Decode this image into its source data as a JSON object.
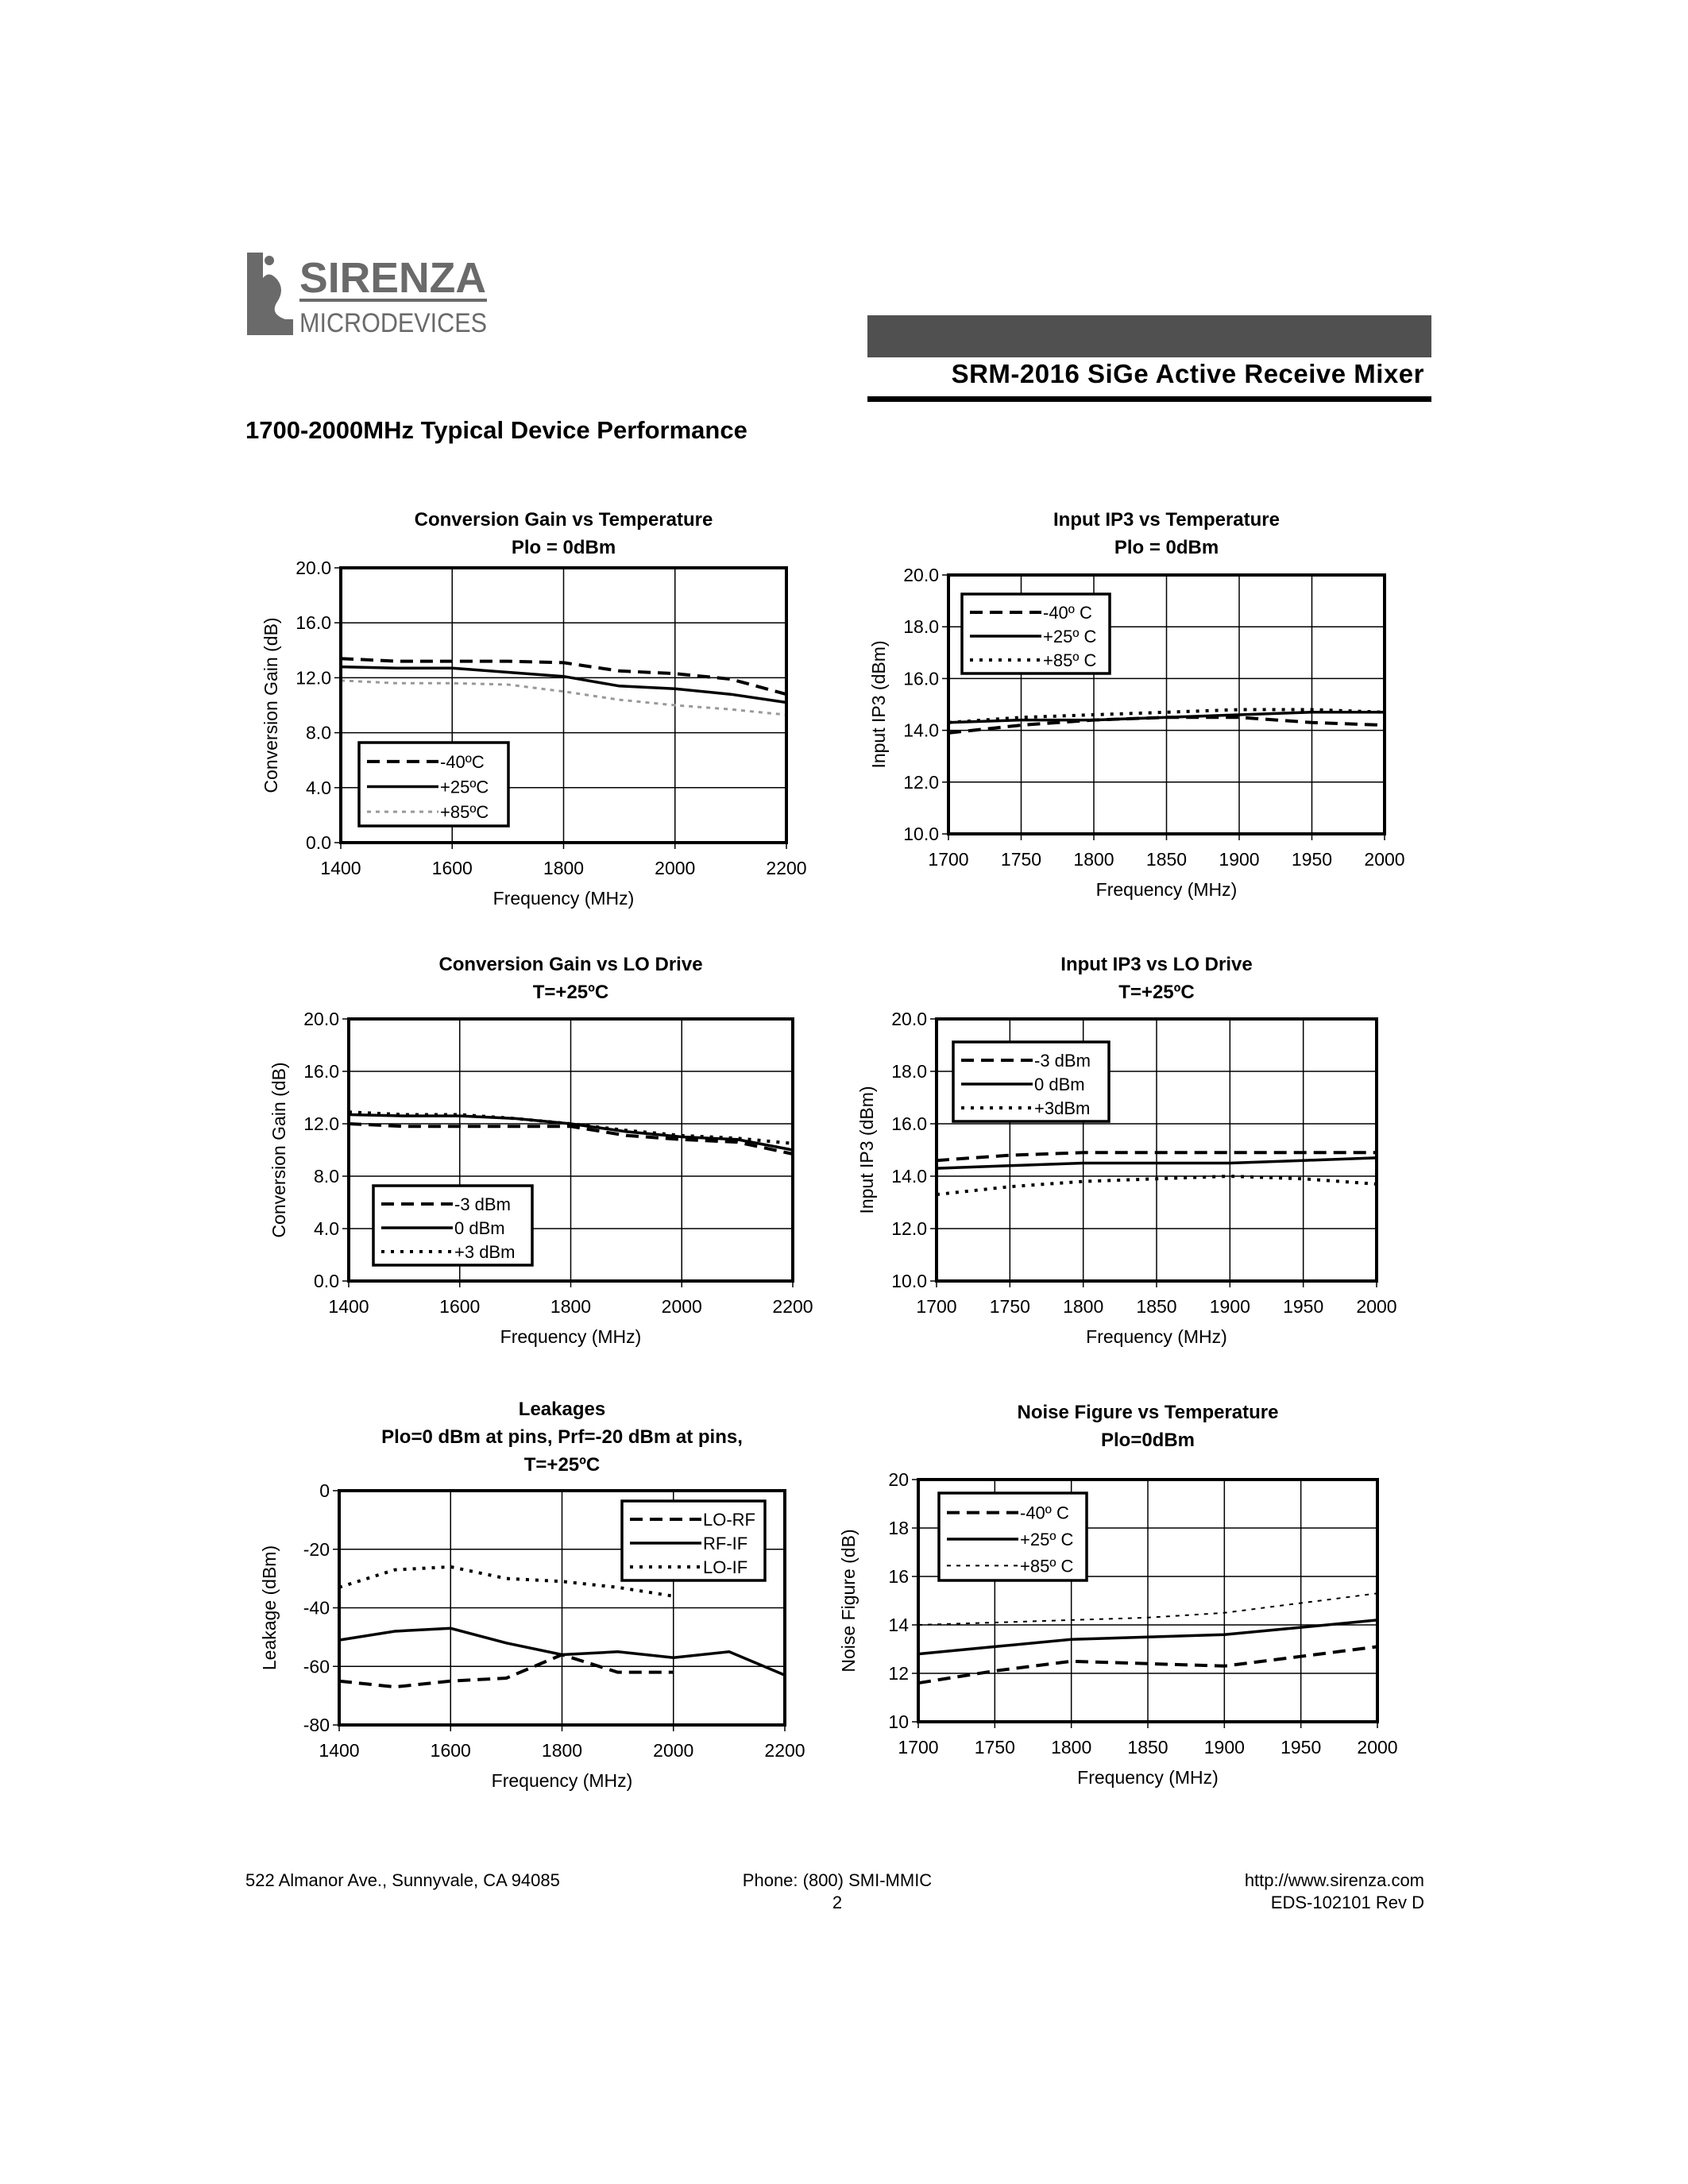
{
  "header": {
    "logo_text": "SIRENZA MICRODEVICES",
    "doc_title": "SRM-2016 SiGe Active Receive Mixer",
    "section_title": "1700-2000MHz Typical Device Performance"
  },
  "footer": {
    "address": "522 Almanor Ave., Sunnyvale, CA 94085",
    "phone": "Phone: (800) SMI-MMIC",
    "page": "2",
    "url": "http://www.sirenza.com",
    "revision": "EDS-102101 Rev D"
  },
  "chart_data": [
    {
      "type": "line",
      "title": [
        "Conversion Gain vs Temperature",
        "Plo = 0dBm"
      ],
      "xlabel": "Frequency (MHz)",
      "ylabel": "Conversion Gain (dB)",
      "xlim": [
        1400,
        2200
      ],
      "ylim": [
        0,
        20
      ],
      "xticks": [
        "1400",
        "1600",
        "1800",
        "2000",
        "2200"
      ],
      "yticks": [
        "0.0",
        "4.0",
        "8.0",
        "12.0",
        "16.0",
        "20.0"
      ],
      "grid": true,
      "legend_position": "bottom-left",
      "x": [
        1400,
        1500,
        1600,
        1700,
        1800,
        1900,
        2000,
        2100,
        2200
      ],
      "series": [
        {
          "name": "-40ºC",
          "style": "dashed",
          "values": [
            13.4,
            13.2,
            13.2,
            13.2,
            13.1,
            12.5,
            12.3,
            11.9,
            10.8
          ]
        },
        {
          "name": "+25ºC",
          "style": "solid",
          "values": [
            12.8,
            12.7,
            12.7,
            12.4,
            12.1,
            11.4,
            11.2,
            10.8,
            10.2
          ]
        },
        {
          "name": "+85ºC",
          "style": "gray-dotted",
          "values": [
            11.8,
            11.6,
            11.6,
            11.5,
            11.0,
            10.4,
            10.0,
            9.7,
            9.3
          ]
        }
      ]
    },
    {
      "type": "line",
      "title": [
        "Input IP3 vs Temperature",
        "Plo = 0dBm"
      ],
      "xlabel": "Frequency (MHz)",
      "ylabel": "Input IP3 (dBm)",
      "xlim": [
        1700,
        2000
      ],
      "ylim": [
        10,
        20
      ],
      "xticks": [
        "1700",
        "1750",
        "1800",
        "1850",
        "1900",
        "1950",
        "2000"
      ],
      "yticks": [
        "10.0",
        "12.0",
        "14.0",
        "16.0",
        "18.0",
        "20.0"
      ],
      "grid": true,
      "legend_position": "top-left",
      "x": [
        1700,
        1750,
        1800,
        1850,
        1900,
        1950,
        2000
      ],
      "series": [
        {
          "name": "-40º C",
          "style": "dashed",
          "values": [
            13.9,
            14.2,
            14.4,
            14.5,
            14.5,
            14.3,
            14.2
          ]
        },
        {
          "name": "+25º C",
          "style": "solid",
          "values": [
            14.3,
            14.4,
            14.4,
            14.5,
            14.6,
            14.7,
            14.7
          ]
        },
        {
          "name": "+85º C",
          "style": "dotted",
          "values": [
            14.3,
            14.5,
            14.6,
            14.7,
            14.8,
            14.8,
            14.7
          ]
        }
      ]
    },
    {
      "type": "line",
      "title": [
        "Conversion Gain vs LO Drive",
        "T=+25ºC"
      ],
      "xlabel": "Frequency (MHz)",
      "ylabel": "Conversion Gain (dB)",
      "xlim": [
        1400,
        2200
      ],
      "ylim": [
        0,
        20
      ],
      "xticks": [
        "1400",
        "1600",
        "1800",
        "2000",
        "2200"
      ],
      "yticks": [
        "0.0",
        "4.0",
        "8.0",
        "12.0",
        "16.0",
        "20.0"
      ],
      "grid": true,
      "legend_position": "bottom-left",
      "x": [
        1400,
        1500,
        1600,
        1700,
        1800,
        1900,
        2000,
        2100,
        2200
      ],
      "series": [
        {
          "name": "-3 dBm",
          "style": "dashed",
          "values": [
            12.0,
            11.8,
            11.8,
            11.8,
            11.8,
            11.1,
            10.8,
            10.6,
            9.7
          ]
        },
        {
          "name": "0 dBm",
          "style": "solid",
          "values": [
            12.7,
            12.6,
            12.6,
            12.4,
            12.0,
            11.4,
            11.0,
            10.8,
            10.0
          ]
        },
        {
          "name": "+3 dBm",
          "style": "dotted",
          "values": [
            12.9,
            12.7,
            12.7,
            12.4,
            12.0,
            11.5,
            11.1,
            10.9,
            10.5
          ]
        }
      ]
    },
    {
      "type": "line",
      "title": [
        "Input IP3 vs LO Drive",
        "T=+25ºC"
      ],
      "xlabel": "Frequency (MHz)",
      "ylabel": "Input IP3 (dBm)",
      "xlim": [
        1700,
        2000
      ],
      "ylim": [
        10,
        20
      ],
      "xticks": [
        "1700",
        "1750",
        "1800",
        "1850",
        "1900",
        "1950",
        "2000"
      ],
      "yticks": [
        "10.0",
        "12.0",
        "14.0",
        "16.0",
        "18.0",
        "20.0"
      ],
      "grid": true,
      "legend_position": "top-left",
      "x": [
        1700,
        1750,
        1800,
        1850,
        1900,
        1950,
        2000
      ],
      "series": [
        {
          "name": "-3 dBm",
          "style": "dashed",
          "values": [
            14.6,
            14.8,
            14.9,
            14.9,
            14.9,
            14.9,
            14.9
          ]
        },
        {
          "name": "0 dBm",
          "style": "solid",
          "values": [
            14.3,
            14.4,
            14.5,
            14.5,
            14.5,
            14.6,
            14.7
          ]
        },
        {
          "name": "+3dBm",
          "style": "dotted",
          "values": [
            13.3,
            13.6,
            13.8,
            13.9,
            14.0,
            13.9,
            13.7
          ]
        }
      ]
    },
    {
      "type": "line",
      "title": [
        "Leakages",
        "Plo=0 dBm at pins, Prf=-20 dBm at pins,",
        "T=+25ºC"
      ],
      "xlabel": "Frequency (MHz)",
      "ylabel": "Leakage (dBm)",
      "xlim": [
        1400,
        2200
      ],
      "ylim": [
        -80,
        0
      ],
      "xticks": [
        "1400",
        "1600",
        "1800",
        "2000",
        "2200"
      ],
      "yticks": [
        "-80",
        "-60",
        "-40",
        "-20",
        "0"
      ],
      "grid": true,
      "legend_position": "top-right",
      "series": [
        {
          "name": "LO-RF",
          "style": "dashed",
          "x": [
            1400,
            1500,
            1600,
            1700,
            1800,
            1900,
            2000
          ],
          "values": [
            -65,
            -67,
            -65,
            -64,
            -56,
            -62,
            -62
          ]
        },
        {
          "name": "RF-IF",
          "style": "solid",
          "x": [
            1400,
            1500,
            1600,
            1700,
            1800,
            1900,
            2000,
            2100,
            2200
          ],
          "values": [
            -51,
            -48,
            -47,
            -52,
            -56,
            -55,
            -57,
            -55,
            -63
          ]
        },
        {
          "name": "LO-IF",
          "style": "dotted",
          "x": [
            1400,
            1500,
            1600,
            1700,
            1800,
            1900,
            2000
          ],
          "values": [
            -33,
            -27,
            -26,
            -30,
            -31,
            -33,
            -36
          ]
        }
      ]
    },
    {
      "type": "line",
      "title": [
        "Noise Figure vs Temperature",
        "Plo=0dBm"
      ],
      "xlabel": "Frequency (MHz)",
      "ylabel": "Noise Figure (dB)",
      "xlim": [
        1700,
        2000
      ],
      "ylim": [
        10,
        20
      ],
      "xticks": [
        "1700",
        "1750",
        "1800",
        "1850",
        "1900",
        "1950",
        "2000"
      ],
      "yticks": [
        "10",
        "12",
        "14",
        "16",
        "18",
        "20"
      ],
      "grid": true,
      "legend_position": "top-left",
      "x": [
        1700,
        1750,
        1800,
        1850,
        1900,
        1950,
        2000
      ],
      "series": [
        {
          "name": "-40º C",
          "style": "dashed",
          "values": [
            11.6,
            12.1,
            12.5,
            12.4,
            12.3,
            12.7,
            13.1
          ]
        },
        {
          "name": "+25º C",
          "style": "solid",
          "values": [
            12.8,
            13.1,
            13.4,
            13.5,
            13.6,
            13.9,
            14.2
          ]
        },
        {
          "name": "+85º C",
          "style": "thin-dotted",
          "values": [
            14.0,
            14.1,
            14.2,
            14.3,
            14.5,
            14.9,
            15.3
          ]
        }
      ]
    }
  ]
}
